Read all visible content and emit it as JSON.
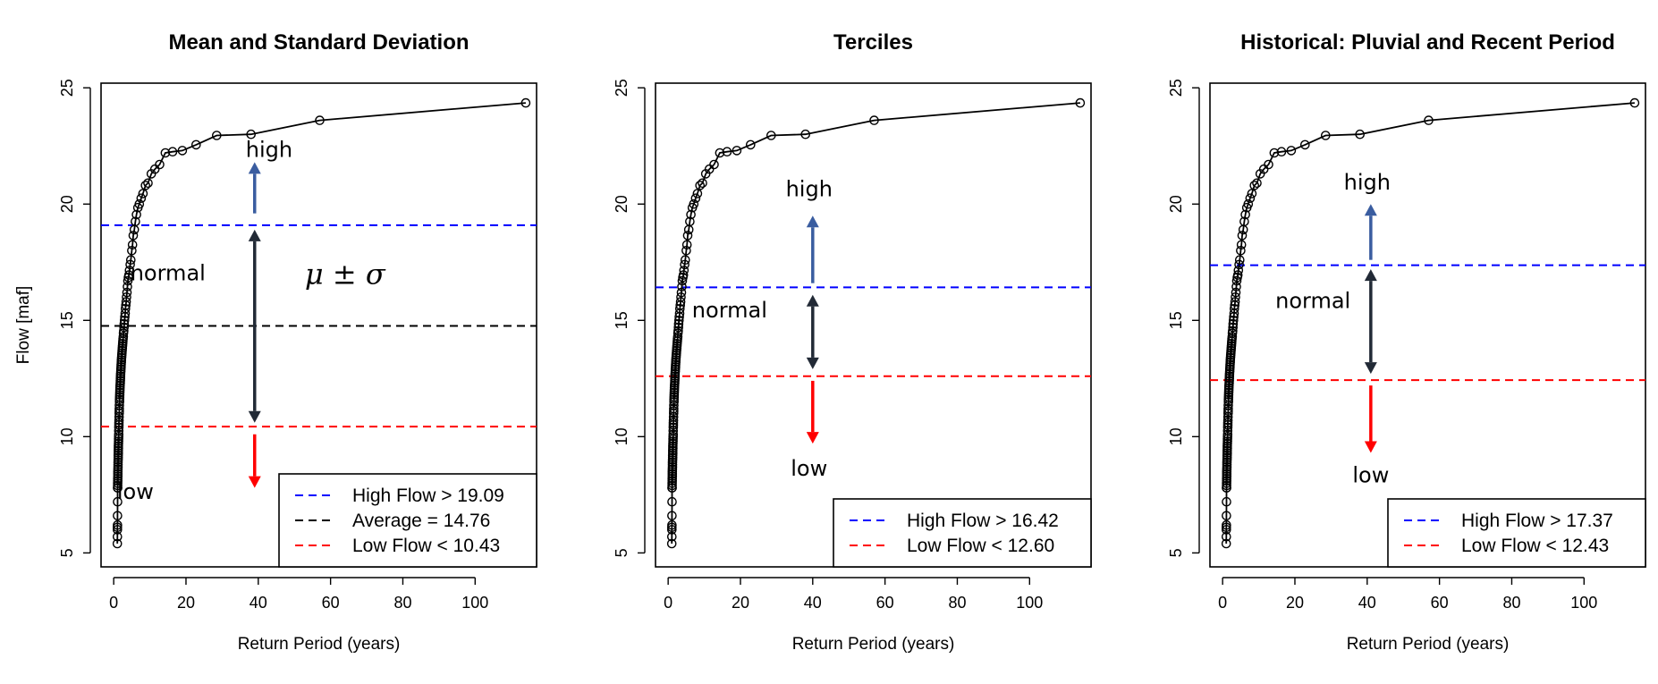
{
  "chart_data": [
    {
      "type": "line",
      "title": "Mean and Standard Deviation",
      "xlabel": "Return Period (years)",
      "ylabel": "Flow [maf]",
      "xlim": [
        -3.5,
        117
      ],
      "ylim": [
        4.4,
        25.2
      ],
      "xticks": [
        "0",
        "20",
        "40",
        "60",
        "80",
        "100"
      ],
      "yticks": [
        "5",
        "10",
        "15",
        "20",
        "25"
      ],
      "thresholds": [
        {
          "label": "High Flow > 19.09",
          "value": 19.09,
          "color": "#0000ff"
        },
        {
          "label": "Average = 14.76",
          "value": 14.76,
          "color": "#000000"
        },
        {
          "label": "Low Flow < 10.43",
          "value": 10.43,
          "color": "#ff0000"
        }
      ],
      "annotations": [
        {
          "text": "high",
          "x": 43,
          "y": 22.3
        },
        {
          "text": "normal",
          "x": 15,
          "y": 17.0
        },
        {
          "text": "low",
          "x": 6,
          "y": 7.6
        }
      ],
      "formula": "μ ± σ",
      "arrows": [
        {
          "x": 39,
          "from": 19.6,
          "to": 21.8,
          "color": "#3a5da0",
          "heads": "end"
        },
        {
          "x": 39,
          "from": 10.6,
          "to": 18.9,
          "color": "#222a36",
          "heads": "both"
        },
        {
          "x": 39,
          "from": 10.1,
          "to": 7.8,
          "color": "#ff0000",
          "heads": "end"
        }
      ]
    },
    {
      "type": "line",
      "title": "Terciles",
      "xlabel": "Return Period (years)",
      "ylabel": "",
      "xlim": [
        -3.5,
        117
      ],
      "ylim": [
        4.4,
        25.2
      ],
      "xticks": [
        "0",
        "20",
        "40",
        "60",
        "80",
        "100"
      ],
      "yticks": [
        "5",
        "10",
        "15",
        "20",
        "25"
      ],
      "thresholds": [
        {
          "label": "High Flow > 16.42",
          "value": 16.42,
          "color": "#0000ff"
        },
        {
          "label": "Low Flow < 12.60",
          "value": 12.6,
          "color": "#ff0000"
        }
      ],
      "annotations": [
        {
          "text": "high",
          "x": 39,
          "y": 20.6
        },
        {
          "text": "normal",
          "x": 17,
          "y": 15.4
        },
        {
          "text": "low",
          "x": 39,
          "y": 8.6
        }
      ],
      "arrows": [
        {
          "x": 40,
          "from": 16.6,
          "to": 19.5,
          "color": "#3a5da0",
          "heads": "end"
        },
        {
          "x": 40,
          "from": 12.9,
          "to": 16.1,
          "color": "#222a36",
          "heads": "both"
        },
        {
          "x": 40,
          "from": 12.4,
          "to": 9.7,
          "color": "#ff0000",
          "heads": "end"
        }
      ]
    },
    {
      "type": "line",
      "title": "Historical: Pluvial and Recent Period",
      "xlabel": "Return Period (years)",
      "ylabel": "",
      "xlim": [
        -3.5,
        117
      ],
      "ylim": [
        4.4,
        25.2
      ],
      "xticks": [
        "0",
        "20",
        "40",
        "60",
        "80",
        "100"
      ],
      "yticks": [
        "5",
        "10",
        "15",
        "20",
        "25"
      ],
      "thresholds": [
        {
          "label": "High Flow > 17.37",
          "value": 17.37,
          "color": "#0000ff"
        },
        {
          "label": "Low Flow < 12.43",
          "value": 12.43,
          "color": "#ff0000"
        }
      ],
      "annotations": [
        {
          "text": "high",
          "x": 40,
          "y": 20.9
        },
        {
          "text": "normal",
          "x": 25,
          "y": 15.8
        },
        {
          "text": "low",
          "x": 41,
          "y": 8.3
        }
      ],
      "arrows": [
        {
          "x": 41,
          "from": 17.6,
          "to": 20.0,
          "color": "#3a5da0",
          "heads": "end"
        },
        {
          "x": 41,
          "from": 12.7,
          "to": 17.2,
          "color": "#222a36",
          "heads": "both"
        },
        {
          "x": 41,
          "from": 12.2,
          "to": 9.3,
          "color": "#ff0000",
          "heads": "end"
        }
      ]
    }
  ],
  "curve": {
    "x": [
      114,
      57,
      38,
      28.5,
      22.8,
      19,
      16.3,
      14.3,
      12.7,
      11.4,
      10.4,
      9.5,
      8.8,
      8.1,
      7.6,
      7.1,
      6.7,
      6.3,
      6.0,
      5.7,
      5.4,
      5.2,
      5.0,
      4.75,
      4.56,
      4.38,
      4.22,
      4.07,
      3.93,
      3.8,
      3.68,
      3.56,
      3.45,
      3.35,
      3.26,
      3.17,
      3.08,
      3.0,
      2.92,
      2.85,
      2.78,
      2.71,
      2.65,
      2.59,
      2.53,
      2.48,
      2.43,
      2.38,
      2.33,
      2.28,
      2.24,
      2.19,
      2.15,
      2.11,
      2.07,
      2.04,
      2.0,
      1.97,
      1.93,
      1.9,
      1.87,
      1.84,
      1.81,
      1.78,
      1.75,
      1.73,
      1.7,
      1.68,
      1.65,
      1.63,
      1.61,
      1.58,
      1.56,
      1.54,
      1.52,
      1.5,
      1.48,
      1.46,
      1.44,
      1.43,
      1.41,
      1.39,
      1.37,
      1.36,
      1.34,
      1.33,
      1.31,
      1.3,
      1.28,
      1.27,
      1.25,
      1.24,
      1.23,
      1.21,
      1.2,
      1.19,
      1.18,
      1.16,
      1.15,
      1.14,
      1.13,
      1.12,
      1.11,
      1.1,
      1.09,
      1.08,
      1.07,
      1.06,
      1.05,
      1.04,
      1.03,
      1.02,
      1.01
    ],
    "y": [
      24.35,
      23.6,
      23.0,
      22.95,
      22.55,
      22.3,
      22.25,
      22.2,
      21.7,
      21.5,
      21.3,
      20.9,
      20.8,
      20.45,
      20.25,
      20.0,
      19.85,
      19.55,
      19.25,
      18.9,
      18.65,
      18.25,
      18.0,
      17.6,
      17.4,
      17.15,
      16.95,
      16.85,
      16.7,
      16.45,
      16.2,
      16.0,
      15.8,
      15.65,
      15.5,
      15.3,
      15.15,
      15.0,
      14.85,
      14.7,
      14.55,
      14.45,
      14.3,
      14.2,
      14.1,
      14.0,
      13.9,
      13.8,
      13.7,
      13.6,
      13.5,
      13.4,
      13.3,
      13.2,
      13.1,
      13.0,
      12.9,
      12.8,
      12.7,
      12.6,
      12.5,
      12.4,
      12.3,
      12.2,
      12.1,
      12.0,
      11.9,
      11.8,
      11.7,
      11.6,
      11.5,
      11.35,
      11.2,
      11.1,
      11.0,
      10.85,
      10.7,
      10.6,
      10.5,
      10.4,
      10.25,
      10.1,
      10.0,
      9.9,
      9.8,
      9.7,
      9.6,
      9.5,
      9.4,
      9.3,
      9.2,
      9.1,
      9.0,
      8.9,
      8.8,
      8.7,
      8.6,
      8.5,
      8.4,
      8.3,
      8.2,
      8.1,
      8.0,
      7.9,
      7.8,
      7.8,
      7.2,
      6.6,
      6.2,
      6.1,
      6.0,
      5.7,
      5.4
    ]
  }
}
